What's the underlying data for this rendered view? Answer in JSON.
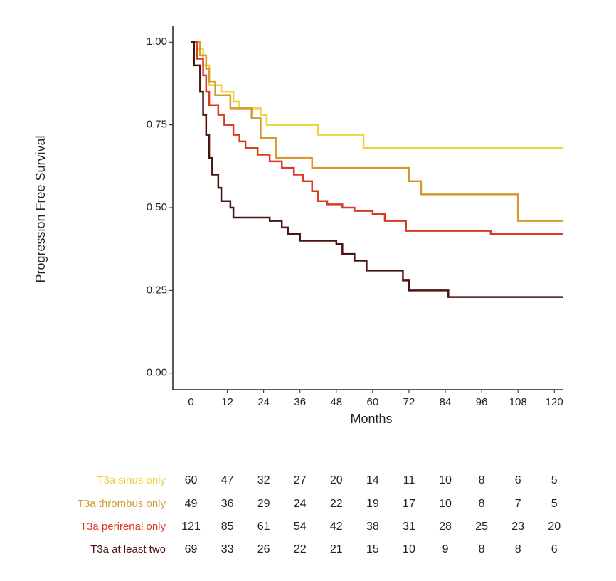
{
  "chart_data": {
    "type": "step",
    "xlabel": "Months",
    "ylabel": "Progression Free Survival",
    "xlim": [
      -6,
      123
    ],
    "ylim": [
      -0.05,
      1.05
    ],
    "xticks": [
      0,
      12,
      24,
      36,
      48,
      60,
      72,
      84,
      96,
      108,
      120
    ],
    "yticks": [
      {
        "value": 0,
        "label": "0.00"
      },
      {
        "value": 0.25,
        "label": "0.25"
      },
      {
        "value": 0.5,
        "label": "0.50"
      },
      {
        "value": 0.75,
        "label": "0.75"
      },
      {
        "value": 1,
        "label": "1.00"
      }
    ],
    "series": [
      {
        "name": "T3a sinus only",
        "color": "#ecd23e",
        "x": [
          0,
          2,
          4,
          6,
          10,
          14,
          16,
          23,
          25,
          42,
          57,
          123
        ],
        "values": [
          1.0,
          0.98,
          0.93,
          0.87,
          0.85,
          0.82,
          0.8,
          0.78,
          0.75,
          0.72,
          0.68,
          0.68
        ]
      },
      {
        "name": "T3a thrombus only",
        "color": "#d69a2c",
        "x": [
          0,
          3,
          5,
          6,
          8,
          13,
          20,
          23,
          28,
          40,
          72,
          76,
          108,
          123
        ],
        "values": [
          1.0,
          0.96,
          0.92,
          0.88,
          0.84,
          0.8,
          0.77,
          0.71,
          0.65,
          0.62,
          0.58,
          0.54,
          0.46,
          0.46
        ]
      },
      {
        "name": "T3a perirenal only",
        "color": "#d83a22",
        "x": [
          0,
          2,
          4,
          5,
          6,
          9,
          11,
          14,
          16,
          18,
          22,
          26,
          30,
          34,
          37,
          40,
          42,
          45,
          50,
          54,
          60,
          64,
          71,
          99,
          123
        ],
        "values": [
          1.0,
          0.95,
          0.9,
          0.85,
          0.81,
          0.78,
          0.75,
          0.72,
          0.7,
          0.68,
          0.66,
          0.64,
          0.62,
          0.6,
          0.58,
          0.55,
          0.52,
          0.51,
          0.5,
          0.49,
          0.48,
          0.46,
          0.43,
          0.42,
          0.42
        ]
      },
      {
        "name": "T3a at least two",
        "color": "#4a1410",
        "x": [
          0,
          1,
          3,
          4,
          5,
          6,
          7,
          9,
          10,
          13,
          14,
          26,
          30,
          32,
          36,
          48,
          50,
          54,
          58,
          70,
          72,
          85,
          123
        ],
        "values": [
          1.0,
          0.93,
          0.85,
          0.78,
          0.72,
          0.65,
          0.6,
          0.56,
          0.52,
          0.5,
          0.47,
          0.46,
          0.44,
          0.42,
          0.4,
          0.39,
          0.36,
          0.34,
          0.31,
          0.28,
          0.25,
          0.23,
          0.23
        ]
      }
    ],
    "risk_table": [
      [
        60,
        47,
        32,
        27,
        20,
        14,
        11,
        10,
        8,
        6,
        5
      ],
      [
        49,
        36,
        29,
        24,
        22,
        19,
        17,
        10,
        8,
        7,
        5
      ],
      [
        121,
        85,
        61,
        54,
        42,
        38,
        31,
        28,
        25,
        23,
        20
      ],
      [
        69,
        33,
        26,
        22,
        21,
        15,
        10,
        9,
        8,
        8,
        6
      ]
    ]
  }
}
